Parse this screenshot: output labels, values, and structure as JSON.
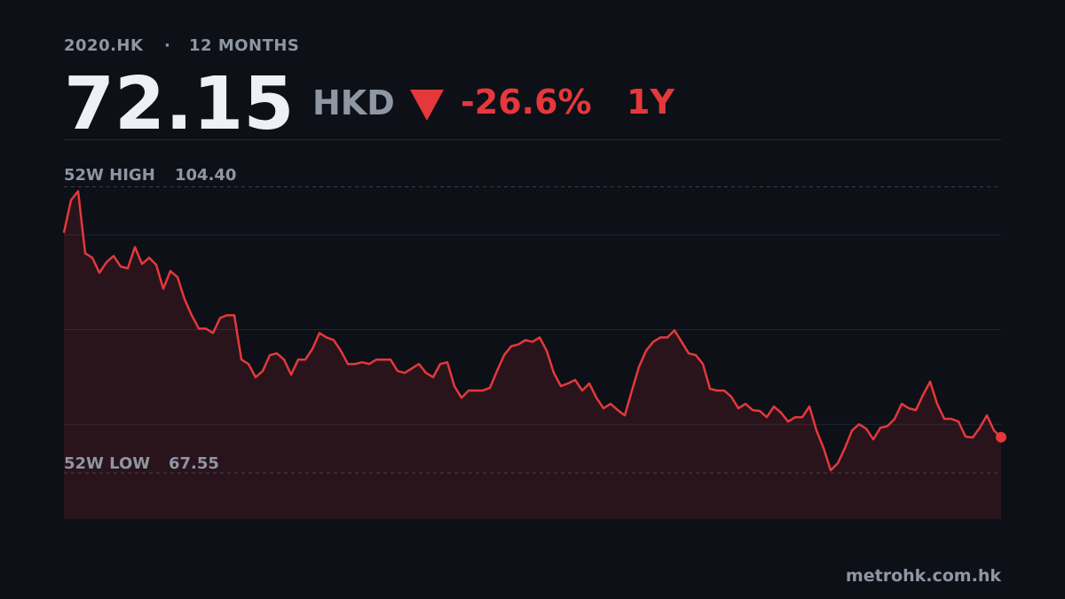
{
  "header": {
    "ticker": "2020.HK",
    "separator": "·",
    "period": "12 MONTHS",
    "price": 72.15,
    "currency": "HKD",
    "change": {
      "value": -26.6,
      "label": "-26.6%"
    },
    "range": "1Y"
  },
  "chart_data": {
    "type": "area",
    "values": [
      98.47,
      102.69,
      103.83,
      95.84,
      95.27,
      93.33,
      94.7,
      95.5,
      94.13,
      93.9,
      96.64,
      94.47,
      95.27,
      94.36,
      91.28,
      93.56,
      92.76,
      89.91,
      87.86,
      86.14,
      86.14,
      85.57,
      87.51,
      87.86,
      87.86,
      82.15,
      81.58,
      79.87,
      80.67,
      82.72,
      82.95,
      82.15,
      80.21,
      82.15,
      82.15,
      83.52,
      85.57,
      85.0,
      84.66,
      83.29,
      81.58,
      81.58,
      81.81,
      81.58,
      82.15,
      82.15,
      82.15,
      80.67,
      80.44,
      81.01,
      81.58,
      80.44,
      79.87,
      81.58,
      81.81,
      78.73,
      77.24,
      78.16,
      78.16,
      78.16,
      78.5,
      80.67,
      82.72,
      83.86,
      84.09,
      84.66,
      84.43,
      85.0,
      83.29,
      80.44,
      78.73,
      79.07,
      79.53,
      78.16,
      79.07,
      77.24,
      75.87,
      76.45,
      75.65,
      74.96,
      78.16,
      81.24,
      83.29,
      84.43,
      85.0,
      85.0,
      85.92,
      84.43,
      82.95,
      82.72,
      81.58,
      78.39,
      78.16,
      78.16,
      77.36,
      75.87,
      76.45,
      75.65,
      75.53,
      74.73,
      76.1,
      75.31,
      74.16,
      74.73,
      74.73,
      76.1,
      73.02,
      70.74,
      67.89,
      68.8,
      70.74,
      73.02,
      73.82,
      73.25,
      71.88,
      73.37,
      73.59,
      74.51,
      76.45,
      75.87,
      75.65,
      77.59,
      79.3,
      76.45,
      74.51,
      74.51,
      74.16,
      72.22,
      72.11,
      73.37,
      74.96,
      73.02,
      72.15
    ],
    "color": "#e5383b",
    "ylim": [
      61.6,
      110.4
    ],
    "yticks": [
      73.8,
      86.0,
      98.2
    ],
    "grid": true,
    "high_label": "52W HIGH",
    "high": {
      "value": 104.4,
      "label": "104.40"
    },
    "low_label": "52W LOW",
    "low": {
      "value": 67.55,
      "label": "67.55"
    }
  },
  "footer": {
    "source": "metrohk.com.hk"
  }
}
